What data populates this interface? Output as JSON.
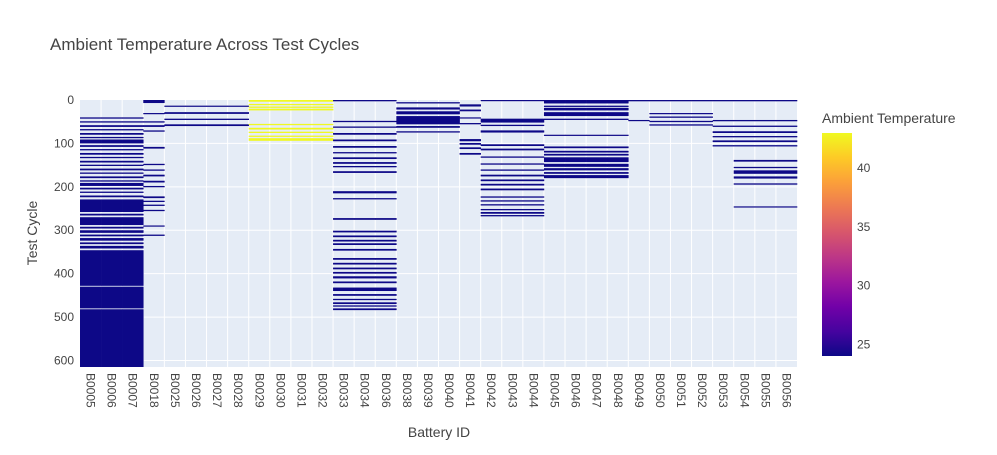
{
  "chart_data": {
    "type": "heatmap",
    "title": "Ambient Temperature Across Test Cycles",
    "xlabel": "Battery ID",
    "ylabel": "Test Cycle",
    "colorbar_title": "Ambient Temperature",
    "y_range": [
      0,
      615
    ],
    "y_reversed": true,
    "y_ticks": [
      0,
      100,
      200,
      300,
      400,
      500,
      600
    ],
    "colorbar_range": [
      24,
      43
    ],
    "colorbar_ticks": [
      25,
      30,
      35,
      40
    ],
    "colorscale": [
      "#0d0887",
      "#46039f",
      "#7201a8",
      "#9c179e",
      "#bd3786",
      "#d8576b",
      "#ed7953",
      "#fb9f3a",
      "#fdca26",
      "#f0f921"
    ],
    "grid": true,
    "categories": [
      "B0005",
      "B0006",
      "B0007",
      "B0018",
      "B0025",
      "B0026",
      "B0027",
      "B0028",
      "B0029",
      "B0030",
      "B0031",
      "B0032",
      "B0033",
      "B0034",
      "B0036",
      "B0038",
      "B0039",
      "B0040",
      "B0041",
      "B0042",
      "B0043",
      "B0044",
      "B0045",
      "B0046",
      "B0047",
      "B0048",
      "B0049",
      "B0050",
      "B0051",
      "B0052",
      "B0053",
      "B0054",
      "B0055",
      "B0056"
    ],
    "groups": [
      {
        "batteries": [
          "B0005",
          "B0006",
          "B0007"
        ],
        "temperature": 24,
        "cycles": [
          [
            40,
            43
          ],
          [
            49,
            52
          ],
          [
            58,
            62
          ],
          [
            67,
            70
          ],
          [
            76,
            80
          ],
          [
            85,
            88
          ],
          [
            91,
            100
          ],
          [
            104,
            108
          ],
          [
            113,
            116
          ],
          [
            122,
            126
          ],
          [
            131,
            134
          ],
          [
            140,
            144
          ],
          [
            149,
            152
          ],
          [
            158,
            162
          ],
          [
            167,
            170
          ],
          [
            176,
            180
          ],
          [
            185,
            188
          ],
          [
            191,
            198
          ],
          [
            202,
            206
          ],
          [
            211,
            214
          ],
          [
            220,
            224
          ],
          [
            229,
            258
          ],
          [
            262,
            266
          ],
          [
            270,
            288
          ],
          [
            292,
            296
          ],
          [
            300,
            306
          ],
          [
            310,
            314
          ],
          [
            318,
            324
          ],
          [
            328,
            332
          ],
          [
            336,
            342
          ],
          [
            346,
            428
          ],
          [
            430,
            480
          ],
          [
            482,
            616
          ]
        ]
      },
      {
        "batteries": [
          "B0018"
        ],
        "temperature": 24,
        "cycles": [
          [
            0,
            7
          ],
          [
            30,
            32
          ],
          [
            49,
            52
          ],
          [
            58,
            62
          ],
          [
            70,
            73
          ],
          [
            108,
            112
          ],
          [
            147,
            150
          ],
          [
            160,
            163
          ],
          [
            172,
            176
          ],
          [
            186,
            190
          ],
          [
            198,
            201
          ],
          [
            222,
            226
          ],
          [
            232,
            235
          ],
          [
            241,
            244
          ],
          [
            253,
            256
          ],
          [
            289,
            291
          ],
          [
            310,
            313
          ]
        ]
      },
      {
        "batteries": [
          "B0025",
          "B0026",
          "B0027",
          "B0028"
        ],
        "temperature": 24,
        "cycles": [
          [
            13,
            15
          ],
          [
            28,
            32
          ],
          [
            43,
            46
          ],
          [
            56,
            60
          ]
        ]
      },
      {
        "batteries": [
          "B0029",
          "B0030",
          "B0031",
          "B0032"
        ],
        "temperature": 43,
        "cycles": [
          [
            0,
            4
          ],
          [
            9,
            12
          ],
          [
            15,
            18
          ],
          [
            20,
            24
          ],
          [
            55,
            58
          ],
          [
            64,
            68
          ],
          [
            73,
            76
          ],
          [
            82,
            85
          ],
          [
            88,
            94
          ]
        ]
      },
      {
        "batteries": [
          "B0033",
          "B0034",
          "B0036"
        ],
        "temperature": 24,
        "cycles": [
          [
            0,
            3
          ],
          [
            48,
            51
          ],
          [
            61,
            64
          ],
          [
            76,
            80
          ],
          [
            91,
            95
          ],
          [
            106,
            110
          ],
          [
            120,
            123
          ],
          [
            132,
            136
          ],
          [
            143,
            147
          ],
          [
            152,
            155
          ],
          [
            164,
            168
          ],
          [
            210,
            215
          ],
          [
            226,
            229
          ],
          [
            272,
            276
          ],
          [
            301,
            305
          ],
          [
            312,
            316
          ],
          [
            322,
            326
          ],
          [
            330,
            334
          ],
          [
            343,
            347
          ],
          [
            364,
            368
          ],
          [
            375,
            379
          ],
          [
            386,
            390
          ],
          [
            396,
            400
          ],
          [
            406,
            411
          ],
          [
            418,
            422
          ],
          [
            432,
            440
          ],
          [
            447,
            451
          ],
          [
            458,
            461
          ],
          [
            466,
            470
          ],
          [
            473,
            476
          ],
          [
            480,
            484
          ]
        ]
      },
      {
        "batteries": [
          "B0038",
          "B0039",
          "B0040"
        ],
        "temperature": 24,
        "cycles": [
          [
            5,
            8
          ],
          [
            17,
            22
          ],
          [
            26,
            33
          ],
          [
            37,
            56
          ],
          [
            60,
            64
          ],
          [
            72,
            75
          ]
        ]
      },
      {
        "batteries": [
          "B0041"
        ],
        "temperature": 24,
        "cycles": [
          [
            10,
            15
          ],
          [
            22,
            26
          ],
          [
            40,
            42
          ],
          [
            53,
            56
          ],
          [
            90,
            95
          ],
          [
            99,
            103
          ],
          [
            109,
            113
          ],
          [
            122,
            126
          ]
        ]
      },
      {
        "batteries": [
          "B0042",
          "B0043",
          "B0044"
        ],
        "temperature": 24,
        "cycles": [
          [
            0,
            2
          ],
          [
            43,
            52
          ],
          [
            57,
            60
          ],
          [
            70,
            75
          ],
          [
            102,
            106
          ],
          [
            112,
            116
          ],
          [
            130,
            133
          ],
          [
            146,
            149
          ],
          [
            160,
            163
          ],
          [
            172,
            176
          ],
          [
            183,
            187
          ],
          [
            193,
            197
          ],
          [
            204,
            208
          ],
          [
            222,
            225
          ],
          [
            231,
            234
          ],
          [
            240,
            243
          ],
          [
            251,
            254
          ],
          [
            258,
            262
          ],
          [
            265,
            268
          ]
        ]
      },
      {
        "batteries": [
          "B0045",
          "B0046",
          "B0047",
          "B0048"
        ],
        "temperature": 24,
        "cycles": [
          [
            0,
            8
          ],
          [
            13,
            16
          ],
          [
            18,
            24
          ],
          [
            28,
            37
          ],
          [
            43,
            46
          ],
          [
            80,
            82
          ],
          [
            107,
            111
          ],
          [
            117,
            121
          ],
          [
            124,
            128
          ],
          [
            132,
            143
          ],
          [
            147,
            154
          ],
          [
            157,
            162
          ],
          [
            166,
            170
          ],
          [
            173,
            180
          ]
        ]
      },
      {
        "batteries": [
          "B0049"
        ],
        "temperature": 24,
        "cycles": [
          [
            0,
            3
          ],
          [
            46,
            48
          ]
        ]
      },
      {
        "batteries": [
          "B0050",
          "B0051",
          "B0052"
        ],
        "temperature": 24,
        "cycles": [
          [
            0,
            3
          ],
          [
            30,
            32
          ],
          [
            38,
            41
          ],
          [
            48,
            51
          ],
          [
            56,
            59
          ]
        ]
      },
      {
        "batteries": [
          "B0053"
        ],
        "temperature": 24,
        "cycles": [
          [
            0,
            3
          ],
          [
            46,
            49
          ],
          [
            59,
            62
          ],
          [
            72,
            76
          ],
          [
            83,
            86
          ],
          [
            93,
            97
          ],
          [
            104,
            107
          ]
        ]
      },
      {
        "batteries": [
          "B0054",
          "B0055",
          "B0056"
        ],
        "temperature": 24,
        "cycles": [
          [
            0,
            3
          ],
          [
            46,
            49
          ],
          [
            59,
            62
          ],
          [
            72,
            76
          ],
          [
            83,
            86
          ],
          [
            93,
            97
          ],
          [
            104,
            107
          ],
          [
            138,
            142
          ],
          [
            154,
            157
          ],
          [
            162,
            170
          ],
          [
            176,
            181
          ],
          [
            192,
            195
          ],
          [
            245,
            247
          ]
        ]
      }
    ]
  }
}
